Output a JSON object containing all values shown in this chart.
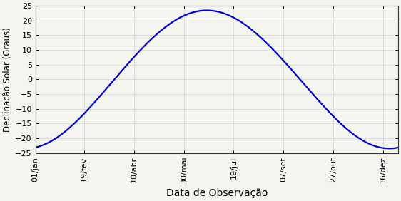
{
  "title": "",
  "xlabel": "Data de Observação",
  "ylabel": "Declinação Solar (Graus)",
  "ylim": [
    -25,
    25
  ],
  "yticks": [
    -25,
    -20,
    -15,
    -10,
    -5,
    0,
    5,
    10,
    15,
    20,
    25
  ],
  "line_color": "#0000cc",
  "line_width": 1.6,
  "background_color": "#f5f5f0",
  "plot_bg_color": "#f5f5f0",
  "grid_color": "#d0d0e0",
  "xtick_labels": [
    "01/jan",
    "19/fev",
    "10/abr",
    "30/mai",
    "19/jul",
    "07/set",
    "27/out",
    "16/dez"
  ],
  "xtick_days": [
    1,
    50,
    100,
    150,
    200,
    250,
    300,
    350
  ],
  "obliquity": 23.45,
  "xlabel_fontsize": 10,
  "ylabel_fontsize": 8.5,
  "tick_fontsize": 8
}
